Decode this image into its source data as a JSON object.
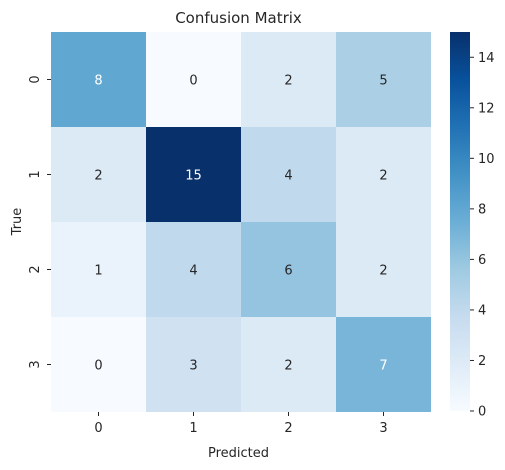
{
  "chart_data": {
    "type": "heatmap",
    "title": "Confusion Matrix",
    "xlabel": "Predicted",
    "ylabel": "True",
    "x_categories": [
      "0",
      "1",
      "2",
      "3"
    ],
    "y_categories": [
      "0",
      "1",
      "2",
      "3"
    ],
    "values": [
      [
        8,
        0,
        2,
        5
      ],
      [
        2,
        15,
        4,
        2
      ],
      [
        1,
        4,
        6,
        2
      ],
      [
        0,
        3,
        2,
        7
      ]
    ],
    "colorscale": "Blues",
    "vmin": 0,
    "vmax": 15,
    "colorbar_ticks": [
      "0",
      "2",
      "4",
      "6",
      "8",
      "10",
      "12",
      "14"
    ],
    "annotations_shown": true
  }
}
